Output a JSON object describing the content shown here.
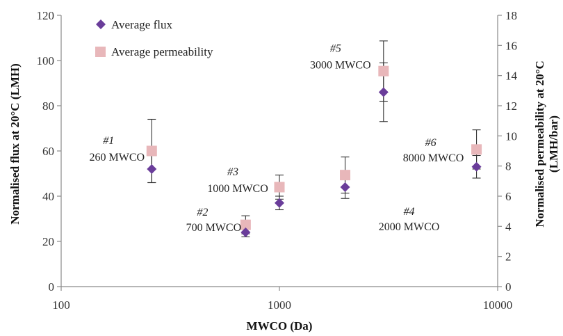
{
  "chart_data": {
    "type": "scatter",
    "title": "",
    "xlabel": "MWCO (Da)",
    "ylabel": "Normalised flux at 20°C (LMH)",
    "y2label_line1": "Normalised permeability at 20°C",
    "y2label_line2": "(LMH/bar)",
    "x_scale": "log",
    "xlim": [
      100,
      10000
    ],
    "ylim": [
      0,
      120
    ],
    "y2lim": [
      0,
      18
    ],
    "x_ticks": [
      "100",
      "1000",
      "10000"
    ],
    "y_ticks": [
      "0",
      "20",
      "40",
      "60",
      "80",
      "100",
      "120"
    ],
    "y2_ticks": [
      "0",
      "2",
      "4",
      "6",
      "8",
      "10",
      "12",
      "14",
      "16",
      "18"
    ],
    "grid": false,
    "legend_position": "top-left",
    "series": [
      {
        "name": "Average flux",
        "axis": "left",
        "marker": "diamond",
        "color": "#6a3d9a",
        "x": [
          260,
          700,
          1000,
          2000,
          3000,
          8000
        ],
        "y": [
          52,
          24,
          37,
          44,
          86,
          53
        ],
        "err": [
          6,
          2,
          3,
          5,
          13,
          5
        ]
      },
      {
        "name": "Average permeability",
        "axis": "right",
        "marker": "square",
        "color": "#e8b7ba",
        "x": [
          260,
          700,
          1000,
          2000,
          3000,
          8000
        ],
        "y": [
          9.0,
          4.1,
          6.6,
          7.4,
          14.3,
          9.1
        ],
        "err": [
          2.1,
          0.6,
          0.8,
          1.2,
          2.0,
          1.3
        ]
      }
    ],
    "annotations": [
      {
        "id": "#1",
        "label": "260 MWCO"
      },
      {
        "id": "#2",
        "label": "700 MWCO"
      },
      {
        "id": "#3",
        "label": "1000 MWCO"
      },
      {
        "id": "#4",
        "label": "2000 MWCO"
      },
      {
        "id": "#5",
        "label": "3000 MWCO"
      },
      {
        "id": "#6",
        "label": "8000 MWCO"
      }
    ]
  }
}
